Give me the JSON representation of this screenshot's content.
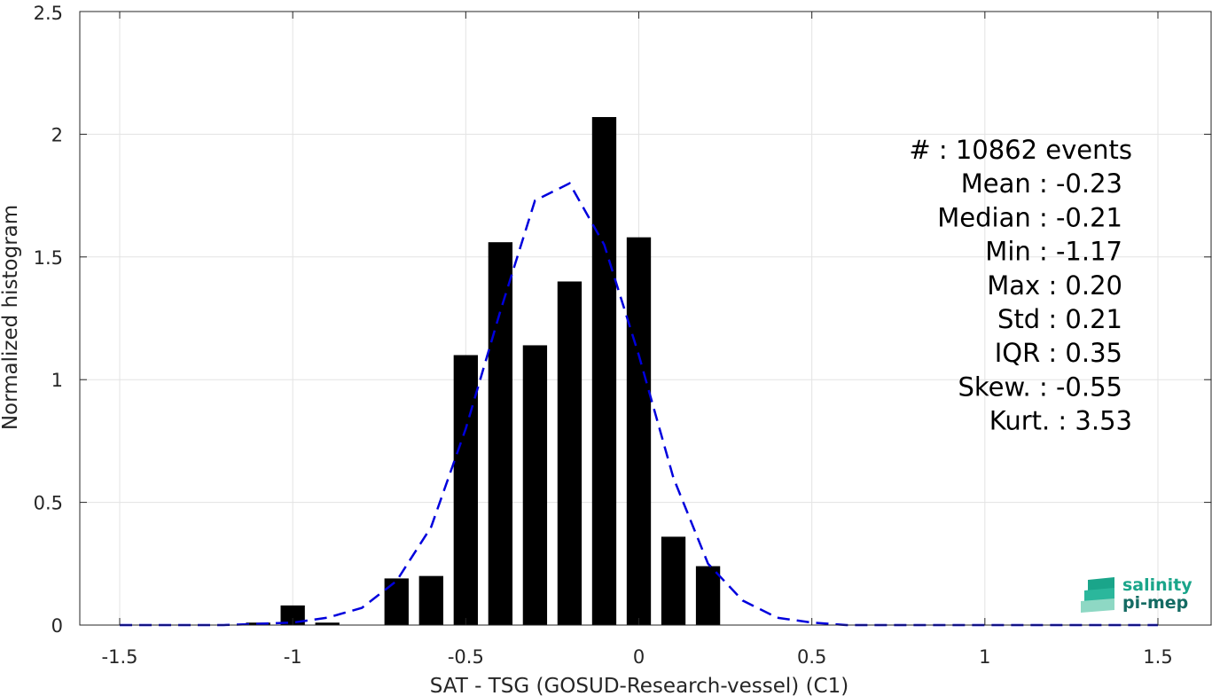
{
  "chart_data": {
    "type": "bar",
    "xlabel": "SAT - TSG (GOSUD-Research-vessel) (C1)",
    "ylabel": "Normalized histogram",
    "xlim": [
      -1.5,
      1.5
    ],
    "ylim": [
      0,
      2.5
    ],
    "grid": true,
    "x_ticks": [
      -1.5,
      -1,
      -0.5,
      0,
      0.5,
      1,
      1.5
    ],
    "x_tick_labels": [
      "-1.5",
      "-1",
      "-0.5",
      "0",
      "0.5",
      "1",
      "1.5"
    ],
    "y_ticks": [
      0,
      0.5,
      1,
      1.5,
      2,
      2.5
    ],
    "y_tick_labels": [
      "0",
      "0.5",
      "1",
      "1.5",
      "2",
      "2.5"
    ],
    "bar_width": 0.07,
    "bars": {
      "x": [
        -1.1,
        -1.0,
        -0.9,
        -0.7,
        -0.6,
        -0.5,
        -0.4,
        -0.3,
        -0.2,
        -0.1,
        0.0,
        0.1,
        0.2
      ],
      "values": [
        0.01,
        0.08,
        0.01,
        0.19,
        0.2,
        1.1,
        1.56,
        1.14,
        1.4,
        2.07,
        1.58,
        0.36,
        0.24
      ],
      "color": "#000000"
    },
    "fit_curve": {
      "style": "dashed",
      "color": "#0000dd",
      "x": [
        -1.5,
        -1.4,
        -1.3,
        -1.2,
        -1.1,
        -1.0,
        -0.9,
        -0.8,
        -0.7,
        -0.6,
        -0.5,
        -0.4,
        -0.3,
        -0.2,
        -0.1,
        0.0,
        0.1,
        0.2,
        0.3,
        0.4,
        0.5,
        0.6,
        0.7,
        0.8,
        0.9,
        1.0,
        1.1,
        1.2,
        1.3,
        1.4,
        1.5
      ],
      "y": [
        0,
        0,
        0,
        0,
        0.005,
        0.01,
        0.03,
        0.07,
        0.18,
        0.4,
        0.8,
        1.28,
        1.73,
        1.8,
        1.55,
        1.1,
        0.6,
        0.25,
        0.1,
        0.03,
        0.01,
        0,
        0,
        0,
        0,
        0,
        0,
        0,
        0,
        0,
        0
      ]
    },
    "stats": [
      "#  : 10862 events",
      "Mean : -0.23",
      "Median : -0.21",
      "Min : -1.17",
      "Max : 0.20",
      "Std : 0.21",
      "IQR : 0.35",
      "Skew. : -0.55",
      "Kurt. : 3.53"
    ]
  },
  "logo": {
    "line1": "salinity",
    "line2": "pi-mep",
    "color1": "#1aa58a",
    "color2": "#146b63"
  }
}
